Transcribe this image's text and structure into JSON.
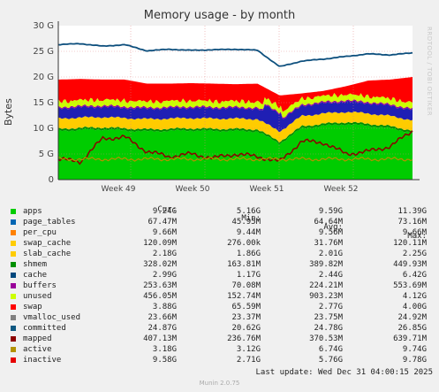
{
  "chart_data": {
    "type": "area",
    "title": "Memory usage - by month",
    "ylabel": "Bytes",
    "ylim": [
      0,
      30
    ],
    "y_unit": "G",
    "y_ticks": [
      "0",
      "5 G",
      "10 G",
      "15 G",
      "20 G",
      "25 G",
      "30 G"
    ],
    "x_ticks": [
      "Week 49",
      "Week 50",
      "Week 51",
      "Week 52"
    ],
    "grid": true,
    "stacked_series_order": [
      "apps",
      "page_tables",
      "per_cpu",
      "swap_cache",
      "slab_cache",
      "shmem",
      "cache",
      "buffers",
      "unused",
      "swap"
    ],
    "series": [
      {
        "name": "apps",
        "color": "#00cc00",
        "cur": "9.24G",
        "min": "5.16G",
        "avg": "9.59G",
        "max": "11.39G"
      },
      {
        "name": "page_tables",
        "color": "#0066b3",
        "cur": "67.47M",
        "min": "45.95M",
        "avg": "64.64M",
        "max": "73.16M"
      },
      {
        "name": "per_cpu",
        "color": "#ff8000",
        "cur": "9.66M",
        "min": "9.44M",
        "avg": "9.56M",
        "max": "9.66M"
      },
      {
        "name": "swap_cache",
        "color": "#ffcc00",
        "cur": "120.09M",
        "min": "276.00k",
        "avg": "31.76M",
        "max": "120.11M"
      },
      {
        "name": "slab_cache",
        "color": "#ffcc00",
        "cur": "2.18G",
        "min": "1.86G",
        "avg": "2.01G",
        "max": "2.25G"
      },
      {
        "name": "shmem",
        "color": "#008f00",
        "cur": "328.02M",
        "min": "163.81M",
        "avg": "389.82M",
        "max": "449.93M"
      },
      {
        "name": "cache",
        "color": "#00487d",
        "cur": "2.99G",
        "min": "1.17G",
        "avg": "2.44G",
        "max": "6.42G"
      },
      {
        "name": "buffers",
        "color": "#990099",
        "cur": "253.63M",
        "min": "70.08M",
        "avg": "224.21M",
        "max": "553.69M"
      },
      {
        "name": "unused",
        "color": "#ccff00",
        "cur": "456.05M",
        "min": "152.74M",
        "avg": "903.23M",
        "max": "4.12G"
      },
      {
        "name": "swap",
        "color": "#ff0000",
        "cur": "3.88G",
        "min": "65.59M",
        "avg": "2.77G",
        "max": "4.00G"
      },
      {
        "name": "vmalloc_used",
        "color": "#808080",
        "cur": "23.66M",
        "min": "23.37M",
        "avg": "23.75M",
        "max": "24.92M"
      },
      {
        "name": "committed",
        "color": "#0d5780",
        "cur": "24.87G",
        "min": "20.62G",
        "avg": "24.78G",
        "max": "26.85G"
      },
      {
        "name": "mapped",
        "color": "#8c0000",
        "cur": "407.13M",
        "min": "236.76M",
        "avg": "370.53M",
        "max": "639.71M"
      },
      {
        "name": "active",
        "color": "#b39200",
        "cur": "3.18G",
        "min": "3.12G",
        "avg": "6.74G",
        "max": "9.74G"
      },
      {
        "name": "inactive",
        "color": "#e60000",
        "cur": "9.58G",
        "min": "2.71G",
        "avg": "5.76G",
        "max": "9.78G"
      }
    ],
    "approx_trends": {
      "committed_G": [
        26.3,
        26.5,
        26.0,
        26.3,
        25.1,
        25.4,
        25.2,
        25.3,
        25.4,
        25.2,
        22.0,
        23.1,
        23.5,
        24.0,
        24.5,
        24.3,
        24.7
      ],
      "stack_top_G": [
        19.5,
        19.6,
        19.5,
        19.5,
        18.7,
        18.7,
        18.8,
        18.7,
        18.6,
        18.7,
        16.4,
        16.8,
        17.3,
        18.2,
        19.3,
        19.5,
        20.0
      ],
      "apps_G": [
        9.5,
        9.7,
        9.8,
        9.6,
        9.4,
        9.5,
        9.6,
        9.5,
        9.5,
        9.4,
        7.0,
        10.0,
        10.5,
        10.8,
        10.5,
        10.0,
        9.2
      ],
      "inactive_G": [
        4.0,
        3.5,
        8.0,
        8.3,
        5.5,
        4.5,
        5.0,
        4.2,
        5.0,
        4.5,
        3.5,
        7.5,
        7.2,
        5.0,
        5.5,
        6.5,
        9.5
      ]
    }
  },
  "legend": {
    "headers": {
      "cur": "Cur:",
      "min": "Min:",
      "avg": "Avg:",
      "max": "Max:"
    },
    "last_update": "Last update: Wed Dec 31 04:00:15 2025"
  },
  "watermark": "RRDTOOL / TOBI OETIKER",
  "footer": "Munin 2.0.75"
}
